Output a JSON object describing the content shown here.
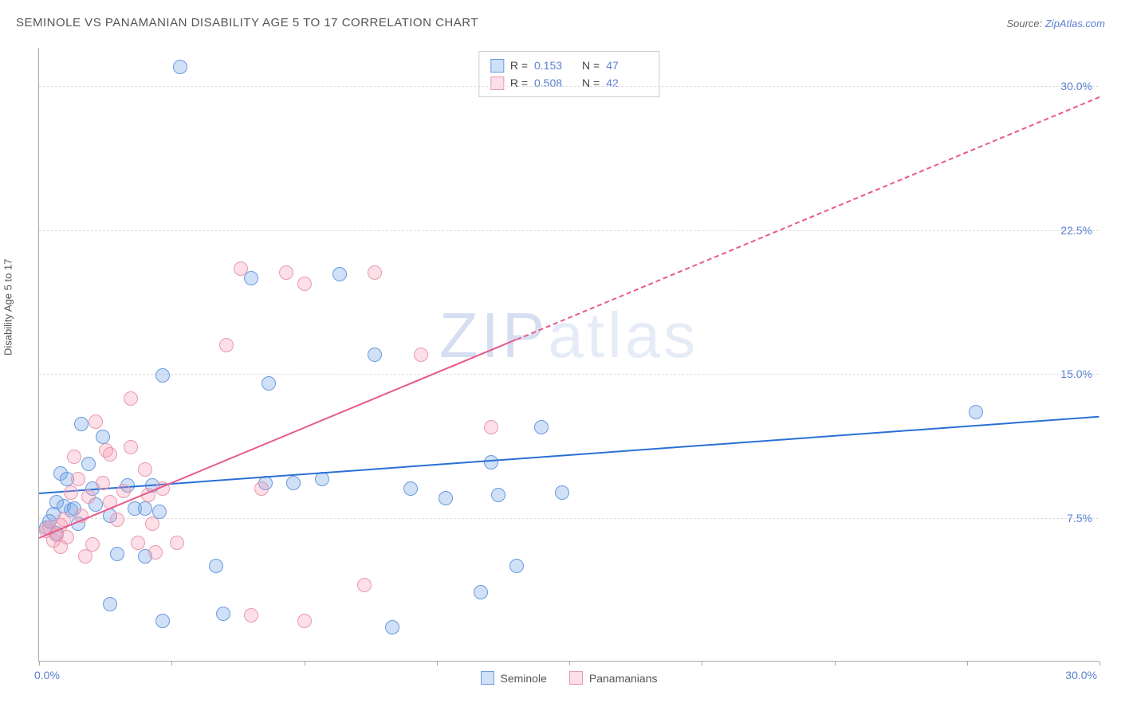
{
  "title": "SEMINOLE VS PANAMANIAN DISABILITY AGE 5 TO 17 CORRELATION CHART",
  "source_prefix": "Source: ",
  "source_link": "ZipAtlas.com",
  "y_axis_label": "Disability Age 5 to 17",
  "watermark": {
    "bold": "ZIP",
    "light": "atlas"
  },
  "chart": {
    "type": "scatter",
    "background_color": "#ffffff",
    "grid_color": "#dddddd",
    "axis_color": "#aaaaaa",
    "tick_label_color": "#5b7fd1",
    "title_color": "#555555",
    "xlim": [
      0,
      30
    ],
    "ylim": [
      0,
      32
    ],
    "x_tick_positions": [
      0,
      3.75,
      7.5,
      11.25,
      15,
      18.75,
      22.5,
      26.25,
      30
    ],
    "x_start_label": "0.0%",
    "x_end_label": "30.0%",
    "y_gridlines": [
      {
        "value": 7.5,
        "label": "7.5%"
      },
      {
        "value": 15.0,
        "label": "15.0%"
      },
      {
        "value": 22.5,
        "label": "22.5%"
      },
      {
        "value": 30.0,
        "label": "30.0%"
      }
    ],
    "marker_radius": 9,
    "marker_border_width": 1,
    "trend_line_width": 2
  },
  "series": [
    {
      "key": "seminole",
      "label": "Seminole",
      "fill_color": "rgba(120,165,230,0.35)",
      "stroke_color": "#6a9ae0",
      "line_color": "#2a6fd6",
      "r_label": "R =",
      "r_value": "0.153",
      "n_label": "N =",
      "n_value": "47",
      "trend": {
        "x1": 0,
        "y1": 8.8,
        "x2": 30,
        "y2": 12.8,
        "dash_after_x": null
      },
      "points": [
        [
          0.2,
          7.0
        ],
        [
          0.3,
          7.3
        ],
        [
          0.4,
          7.7
        ],
        [
          0.5,
          6.7
        ],
        [
          0.5,
          8.3
        ],
        [
          0.6,
          9.8
        ],
        [
          0.7,
          8.1
        ],
        [
          0.8,
          9.5
        ],
        [
          0.9,
          7.9
        ],
        [
          1.0,
          8.0
        ],
        [
          1.1,
          7.2
        ],
        [
          1.2,
          12.4
        ],
        [
          1.4,
          10.3
        ],
        [
          1.5,
          9.0
        ],
        [
          1.6,
          8.2
        ],
        [
          1.8,
          11.7
        ],
        [
          2.0,
          3.0
        ],
        [
          2.0,
          7.6
        ],
        [
          2.2,
          5.6
        ],
        [
          2.5,
          9.2
        ],
        [
          2.7,
          8.0
        ],
        [
          3.0,
          5.5
        ],
        [
          3.0,
          8.0
        ],
        [
          3.2,
          9.2
        ],
        [
          3.4,
          7.8
        ],
        [
          3.5,
          14.9
        ],
        [
          3.5,
          2.1
        ],
        [
          4.0,
          31.0
        ],
        [
          5.0,
          5.0
        ],
        [
          5.2,
          2.5
        ],
        [
          6.0,
          20.0
        ],
        [
          6.4,
          9.3
        ],
        [
          6.5,
          14.5
        ],
        [
          7.2,
          9.3
        ],
        [
          8.0,
          9.5
        ],
        [
          8.5,
          20.2
        ],
        [
          9.5,
          16.0
        ],
        [
          10.5,
          9.0
        ],
        [
          11.5,
          8.5
        ],
        [
          12.5,
          3.6
        ],
        [
          12.8,
          10.4
        ],
        [
          13.0,
          8.7
        ],
        [
          13.5,
          5.0
        ],
        [
          14.2,
          12.2
        ],
        [
          14.8,
          8.8
        ],
        [
          26.5,
          13.0
        ],
        [
          10.0,
          1.8
        ]
      ]
    },
    {
      "key": "panamanian",
      "label": "Panamanians",
      "fill_color": "rgba(245,150,175,0.30)",
      "stroke_color": "#e89ab0",
      "line_color": "#e85a8a",
      "r_label": "R =",
      "r_value": "0.508",
      "n_label": "N =",
      "n_value": "42",
      "trend": {
        "x1": 0,
        "y1": 6.5,
        "x2": 30,
        "y2": 29.5,
        "dash_after_x": 13.5
      },
      "points": [
        [
          0.2,
          6.8
        ],
        [
          0.3,
          7.0
        ],
        [
          0.4,
          6.3
        ],
        [
          0.5,
          6.6
        ],
        [
          0.6,
          7.1
        ],
        [
          0.6,
          6.0
        ],
        [
          0.7,
          7.4
        ],
        [
          0.8,
          6.5
        ],
        [
          0.9,
          8.8
        ],
        [
          1.0,
          10.7
        ],
        [
          1.1,
          9.5
        ],
        [
          1.2,
          7.6
        ],
        [
          1.3,
          5.5
        ],
        [
          1.4,
          8.6
        ],
        [
          1.5,
          6.1
        ],
        [
          1.6,
          12.5
        ],
        [
          1.8,
          9.3
        ],
        [
          1.9,
          11.0
        ],
        [
          2.0,
          8.3
        ],
        [
          2.0,
          10.8
        ],
        [
          2.2,
          7.4
        ],
        [
          2.4,
          8.9
        ],
        [
          2.6,
          13.7
        ],
        [
          2.6,
          11.2
        ],
        [
          2.8,
          6.2
        ],
        [
          3.0,
          10.0
        ],
        [
          3.1,
          8.7
        ],
        [
          3.2,
          7.2
        ],
        [
          3.3,
          5.7
        ],
        [
          3.5,
          9.0
        ],
        [
          3.9,
          6.2
        ],
        [
          5.3,
          16.5
        ],
        [
          5.7,
          20.5
        ],
        [
          6.0,
          2.4
        ],
        [
          6.3,
          9.0
        ],
        [
          7.0,
          20.3
        ],
        [
          7.5,
          19.7
        ],
        [
          7.5,
          2.1
        ],
        [
          9.2,
          4.0
        ],
        [
          9.5,
          20.3
        ],
        [
          10.8,
          16.0
        ],
        [
          12.8,
          12.2
        ]
      ]
    }
  ]
}
